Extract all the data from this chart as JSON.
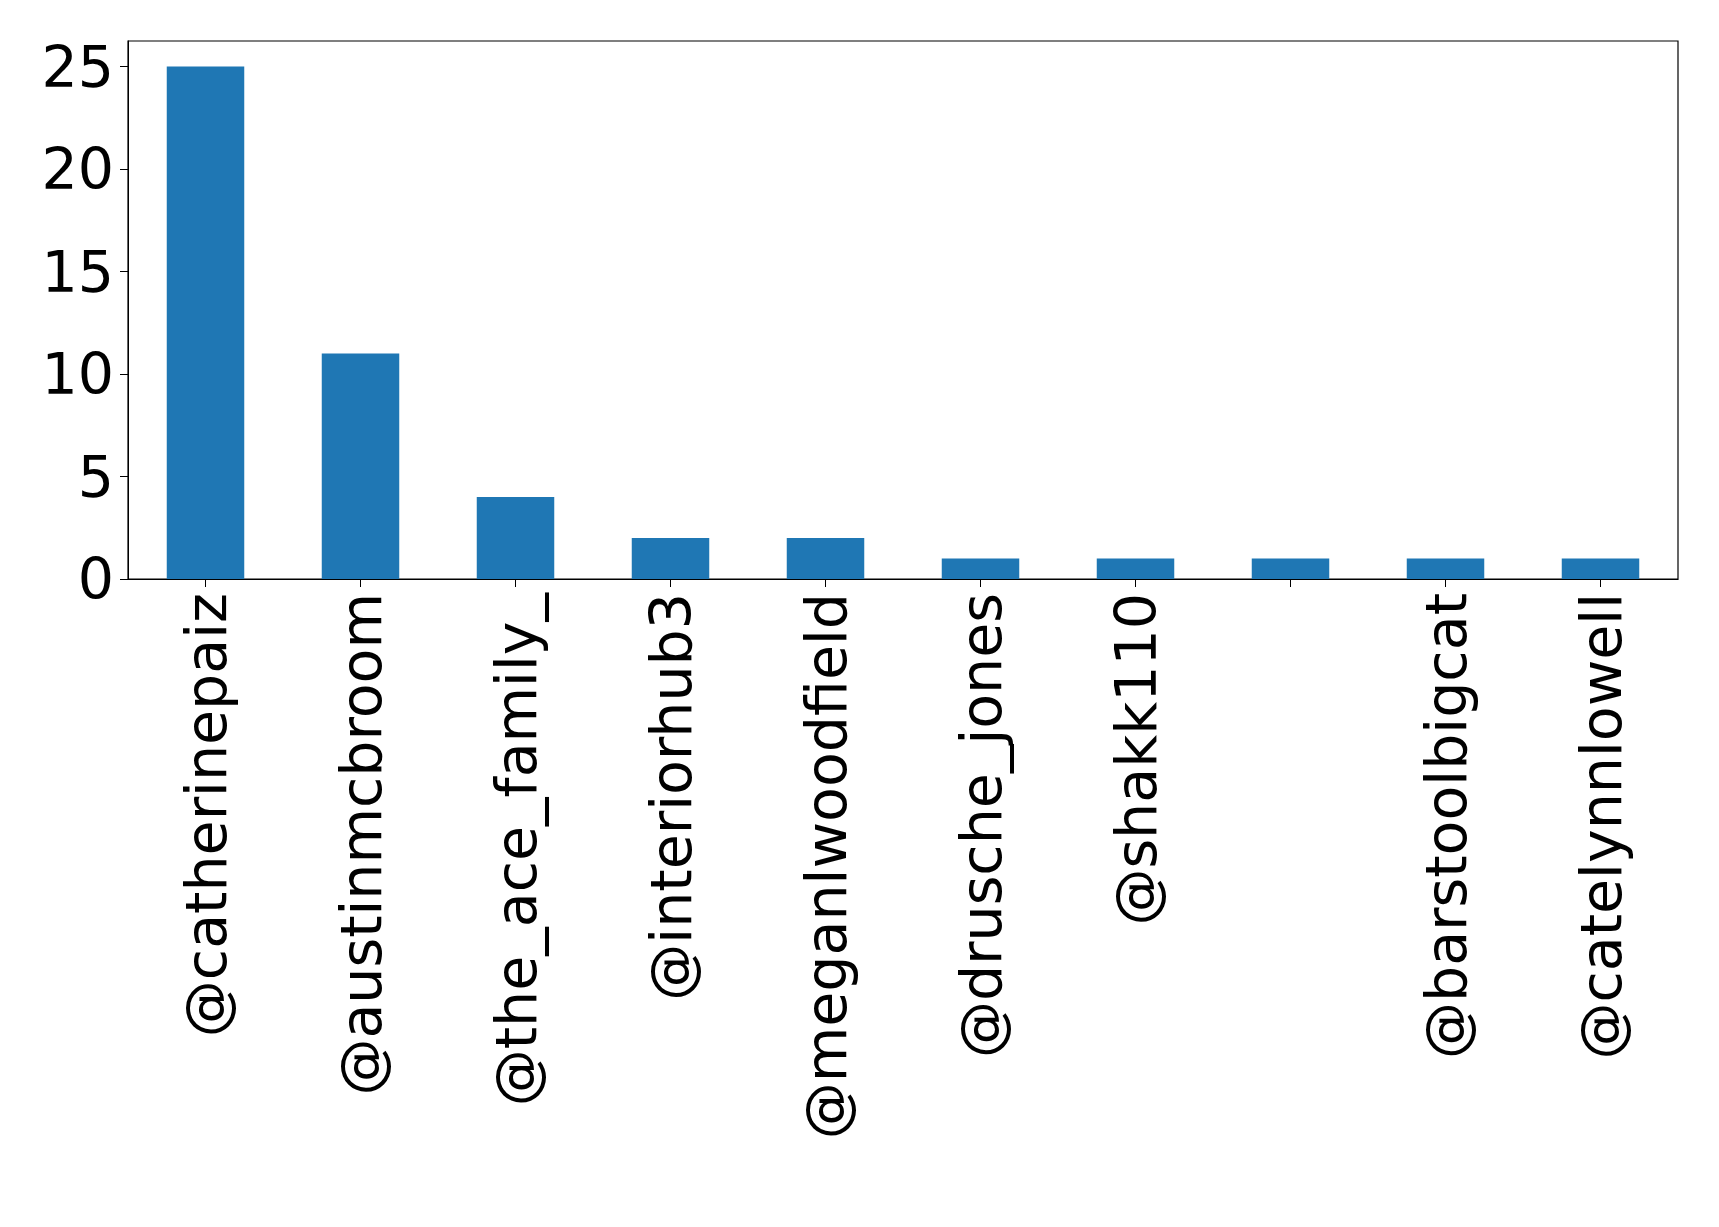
{
  "chart_data": {
    "type": "bar",
    "categories": [
      "@catherinepaiz",
      "@austinmcbroom",
      "@the_ace_family_",
      "@interiorhub3",
      "@meganlwoodfield",
      "@drusche_jones",
      "@shakk110",
      null,
      "@barstoolbigcat",
      "@catelynnlowell"
    ],
    "values": [
      25,
      11,
      4,
      2,
      2,
      1,
      1,
      1,
      1,
      1
    ],
    "color": "#1f77b4",
    "ylim": [
      0,
      26.25
    ],
    "yticks": [
      0,
      5,
      10,
      15,
      20,
      25
    ],
    "grid": false
  }
}
